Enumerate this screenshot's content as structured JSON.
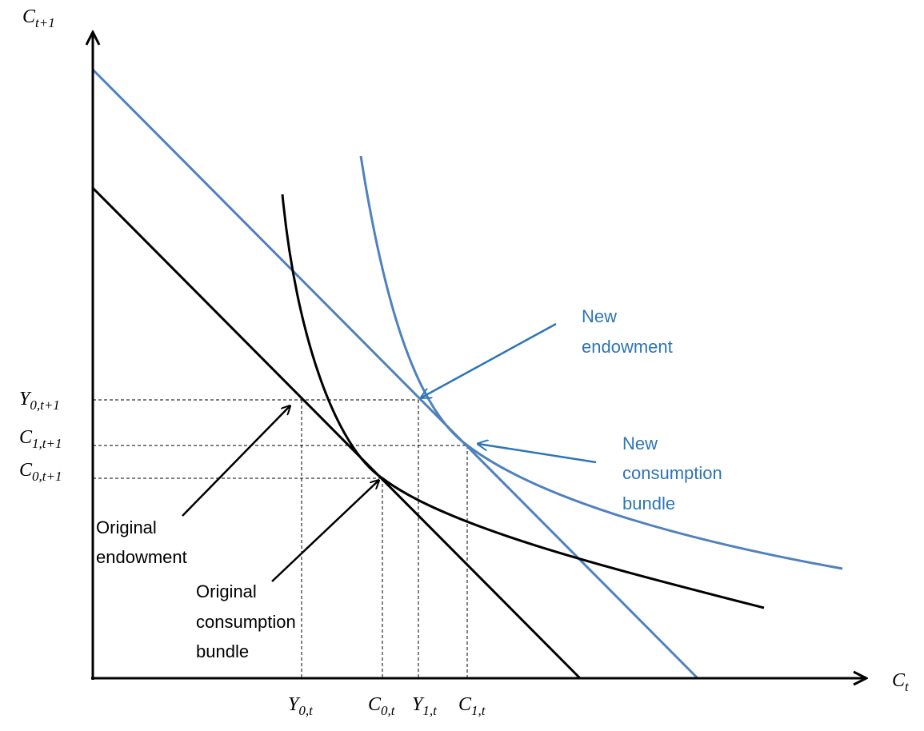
{
  "axes": {
    "y_label": {
      "main": "C",
      "sub": "t+1"
    },
    "x_label": {
      "main": "C",
      "sub": "t"
    }
  },
  "y_ticks": [
    {
      "main": "Y",
      "sub": "0,t+1"
    },
    {
      "main": "C",
      "sub": "1,t+1"
    },
    {
      "main": "C",
      "sub": "0,t+1"
    }
  ],
  "x_ticks": [
    {
      "main": "Y",
      "sub": "0,t"
    },
    {
      "main": "C",
      "sub": "0,t"
    },
    {
      "main": "Y",
      "sub": "1,t"
    },
    {
      "main": "C",
      "sub": "1,t"
    }
  ],
  "annotations": {
    "new_endowment": [
      "New",
      "endowment"
    ],
    "new_consumption": [
      "New",
      "consumption",
      "bundle"
    ],
    "original_endowment": [
      "Original",
      "endowment"
    ],
    "original_consumption": [
      "Original",
      "consumption",
      "bundle"
    ]
  }
}
